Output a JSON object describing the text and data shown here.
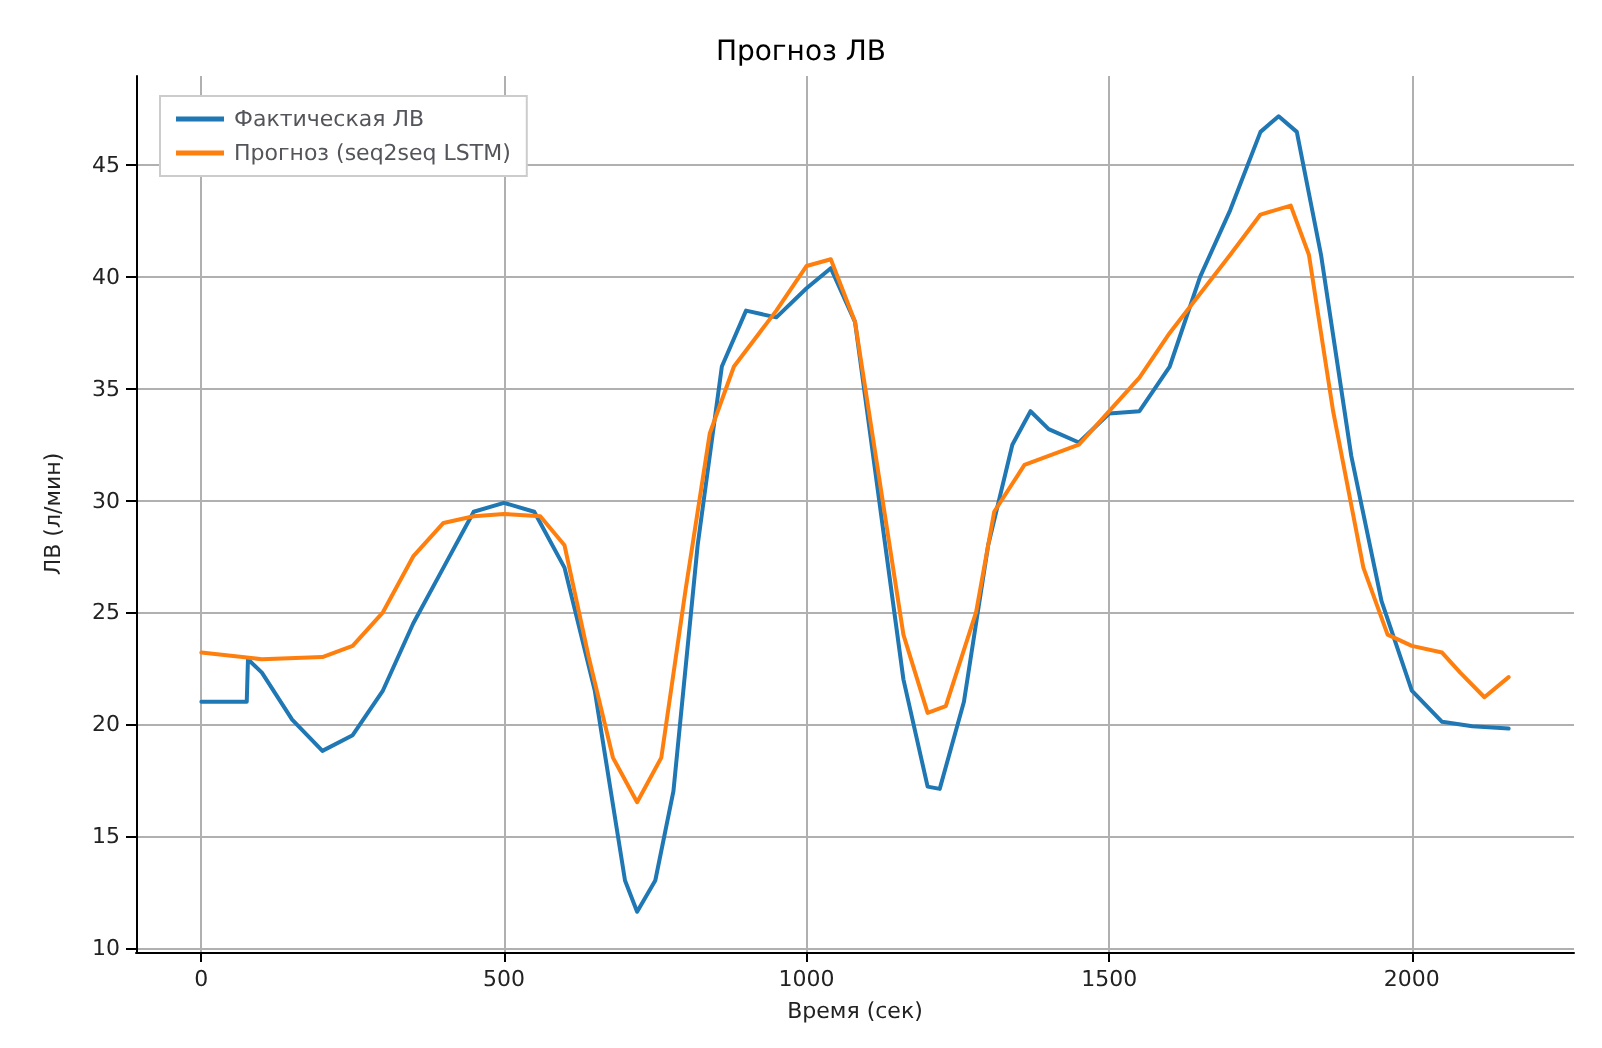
{
  "chart_data": {
    "type": "line",
    "title": "Прогноз ЛВ",
    "xlabel": "Время (сек)",
    "ylabel": "ЛВ (л/мин)",
    "xlim": [
      -108,
      2268
    ],
    "ylim": [
      9.8,
      49
    ],
    "xticks": [
      0,
      500,
      1000,
      1500,
      2000
    ],
    "yticks": [
      10,
      15,
      20,
      25,
      30,
      35,
      40,
      45
    ],
    "grid": true,
    "legend": "top left",
    "marker": "none",
    "line_style": "solid",
    "series": [
      {
        "name": "Фактическая ЛВ",
        "color": "#1f77b4",
        "x": [
          0,
          75,
          77,
          100,
          150,
          200,
          250,
          300,
          350,
          400,
          450,
          500,
          550,
          600,
          650,
          700,
          720,
          750,
          780,
          820,
          860,
          900,
          950,
          1000,
          1040,
          1080,
          1120,
          1160,
          1200,
          1220,
          1260,
          1300,
          1340,
          1370,
          1400,
          1450,
          1500,
          1550,
          1600,
          1650,
          1700,
          1750,
          1780,
          1810,
          1850,
          1900,
          1950,
          2000,
          2050,
          2100,
          2160
        ],
        "values": [
          21,
          21,
          22.9,
          22.3,
          20.2,
          18.8,
          19.5,
          21.5,
          24.5,
          27,
          29.5,
          29.9,
          29.5,
          27,
          21.5,
          13,
          11.6,
          13,
          17,
          28,
          36,
          38.5,
          38.2,
          39.5,
          40.4,
          38,
          30,
          22,
          17.2,
          17.1,
          21,
          28,
          32.5,
          34,
          33.2,
          32.6,
          33.9,
          34,
          36,
          40,
          43,
          46.5,
          47.2,
          46.5,
          41,
          32,
          25.5,
          21.5,
          20.1,
          19.9,
          19.8
        ]
      },
      {
        "name": "Прогноз (seq2seq LSTM)",
        "color": "#ff7f0e",
        "x": [
          0,
          100,
          200,
          250,
          300,
          350,
          400,
          450,
          500,
          560,
          600,
          640,
          680,
          720,
          760,
          800,
          840,
          880,
          950,
          1000,
          1040,
          1080,
          1120,
          1160,
          1200,
          1230,
          1280,
          1310,
          1360,
          1400,
          1450,
          1500,
          1550,
          1600,
          1700,
          1750,
          1800,
          1830,
          1870,
          1920,
          1960,
          2000,
          2050,
          2080,
          2120,
          2160
        ],
        "values": [
          23.2,
          22.9,
          23,
          23.5,
          25,
          27.5,
          29,
          29.3,
          29.4,
          29.3,
          28,
          23,
          18.5,
          16.5,
          18.5,
          26,
          33,
          36,
          38.5,
          40.5,
          40.8,
          38,
          31,
          24,
          20.5,
          20.8,
          25,
          29.5,
          31.6,
          32,
          32.5,
          34,
          35.5,
          37.5,
          41,
          42.8,
          43.2,
          41,
          34,
          27,
          24,
          23.5,
          23.2,
          22.3,
          21.2,
          22.1
        ]
      }
    ]
  }
}
